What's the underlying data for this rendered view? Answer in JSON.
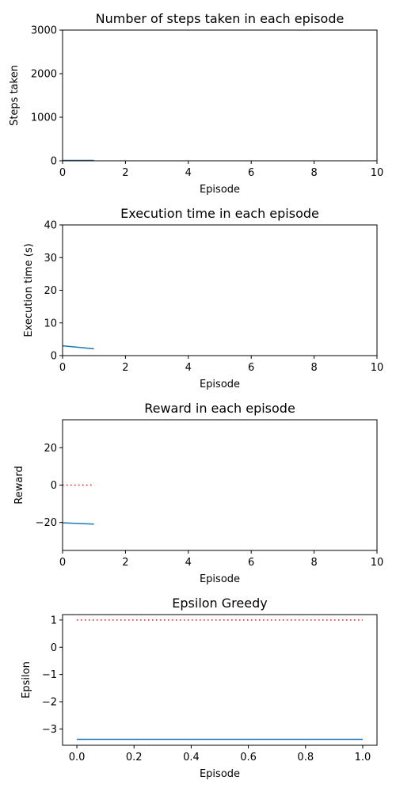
{
  "chart_data": [
    {
      "type": "line",
      "title": "Number of steps taken in each episode",
      "xlabel": "Episode",
      "ylabel": "Steps taken",
      "xlim": [
        0,
        10
      ],
      "ylim": [
        0,
        3000
      ],
      "xticks": [
        0,
        2,
        4,
        6,
        8,
        10
      ],
      "yticks": [
        0,
        1000,
        2000,
        3000
      ],
      "xtick_labels": [
        "0",
        "2",
        "4",
        "6",
        "8",
        "10"
      ],
      "ytick_labels": [
        "0",
        "1000",
        "2000",
        "3000"
      ],
      "grid": false,
      "series": [
        {
          "x": [
            0,
            1
          ],
          "y": [
            8,
            8
          ],
          "color": "#1f77b4",
          "style": "solid"
        },
        {
          "x": [
            0,
            1
          ],
          "y": [
            0,
            0
          ],
          "color": "#ff0000",
          "style": "dotted"
        }
      ]
    },
    {
      "type": "line",
      "title": "Execution time in each episode",
      "xlabel": "Episode",
      "ylabel": "Execution time (s)",
      "xlim": [
        0,
        10
      ],
      "ylim": [
        0,
        40
      ],
      "xticks": [
        0,
        2,
        4,
        6,
        8,
        10
      ],
      "yticks": [
        0,
        10,
        20,
        30,
        40
      ],
      "xtick_labels": [
        "0",
        "2",
        "4",
        "6",
        "8",
        "10"
      ],
      "ytick_labels": [
        "0",
        "10",
        "20",
        "30",
        "40"
      ],
      "grid": false,
      "series": [
        {
          "x": [
            0,
            1
          ],
          "y": [
            3.0,
            2.1
          ],
          "color": "#1f77b4",
          "style": "solid"
        }
      ]
    },
    {
      "type": "line",
      "title": "Reward in each episode",
      "xlabel": "Episode",
      "ylabel": "Reward",
      "xlim": [
        0,
        10
      ],
      "ylim": [
        -35,
        35
      ],
      "xticks": [
        0,
        2,
        4,
        6,
        8,
        10
      ],
      "yticks": [
        -20,
        0,
        20
      ],
      "xtick_labels": [
        "0",
        "2",
        "4",
        "6",
        "8",
        "10"
      ],
      "ytick_labels": [
        "−20",
        "0",
        "20"
      ],
      "grid": false,
      "series": [
        {
          "x": [
            0,
            1
          ],
          "y": [
            -20.2,
            -20.9
          ],
          "color": "#1f77b4",
          "style": "solid"
        },
        {
          "x": [
            0,
            1
          ],
          "y": [
            0,
            0
          ],
          "color": "#ff0000",
          "style": "dotted"
        }
      ]
    },
    {
      "type": "line",
      "title": "Epsilon Greedy",
      "xlabel": "Episode",
      "ylabel": "Epsilon",
      "xlim": [
        -0.05,
        1.05
      ],
      "ylim": [
        -3.6,
        1.2
      ],
      "xticks": [
        0,
        0.2,
        0.4,
        0.6,
        0.8,
        1.0
      ],
      "yticks": [
        -3,
        -2,
        -1,
        0,
        1
      ],
      "xtick_labels": [
        "0.0",
        "0.2",
        "0.4",
        "0.6",
        "0.8",
        "1.0"
      ],
      "ytick_labels": [
        "−3",
        "−2",
        "−1",
        "0",
        "1"
      ],
      "grid": false,
      "series": [
        {
          "x": [
            0,
            1
          ],
          "y": [
            -3.38,
            -3.38
          ],
          "color": "#1f77b4",
          "style": "solid"
        },
        {
          "x": [
            0,
            1
          ],
          "y": [
            1,
            1
          ],
          "color": "#ff0000",
          "style": "dotted"
        }
      ]
    }
  ]
}
